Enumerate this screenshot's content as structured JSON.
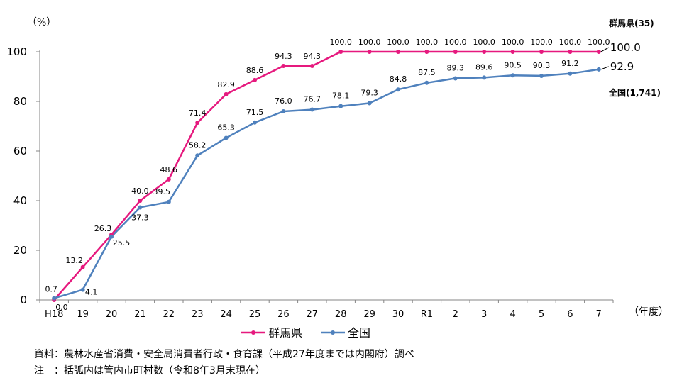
{
  "chart_data": {
    "type": "line",
    "categories": [
      "H18",
      "19",
      "20",
      "21",
      "22",
      "23",
      "24",
      "25",
      "26",
      "27",
      "28",
      "29",
      "30",
      "R1",
      "2",
      "3",
      "4",
      "5",
      "6",
      "7"
    ],
    "ylim": [
      0,
      100
    ],
    "yticks": [
      0,
      20,
      40,
      60,
      80,
      100
    ],
    "ylabel": "（%）",
    "xlabel": "（年度）",
    "grid": false,
    "legend_position": "bottom",
    "series": [
      {
        "name": "群馬県",
        "color": "#e6197e",
        "values": [
          0.0,
          13.2,
          26.3,
          40.0,
          48.6,
          71.4,
          82.9,
          88.6,
          94.3,
          94.3,
          100.0,
          100.0,
          100.0,
          100.0,
          100.0,
          100.0,
          100.0,
          100.0,
          100.0,
          100.0
        ],
        "labels": [
          "0.0",
          "13.2",
          "26.3",
          "40.0",
          "48.6",
          "71.4",
          "82.9",
          "88.6",
          "94.3",
          "94.3",
          "100.0",
          "100.0",
          "100.0",
          "100.0",
          "100.0",
          "100.0",
          "100.0",
          "100.0",
          "100.0",
          "100.0"
        ],
        "annotation": "群馬県(35)"
      },
      {
        "name": "全国",
        "color": "#4f81bd",
        "values": [
          0.7,
          4.1,
          25.5,
          37.3,
          39.5,
          58.2,
          65.3,
          71.5,
          76.0,
          76.7,
          78.1,
          79.3,
          84.8,
          87.5,
          89.3,
          89.6,
          90.5,
          90.3,
          91.2,
          92.9
        ],
        "labels": [
          "0.7",
          "4.1",
          "25.5",
          "37.3",
          "39.5",
          "58.2",
          "65.3",
          "71.5",
          "76.0",
          "76.7",
          "78.1",
          "79.3",
          "84.8",
          "87.5",
          "89.3",
          "89.6",
          "90.5",
          "90.3",
          "91.2",
          "92.9"
        ],
        "annotation": "全国(1,741)"
      }
    ],
    "source": "資料：農林水産省消費・安全局消費者行政・食育課（平成27年度までは内閣府）調べ",
    "note": "注　：括弧内は管内市町村数（令和8年3月末現在）"
  }
}
